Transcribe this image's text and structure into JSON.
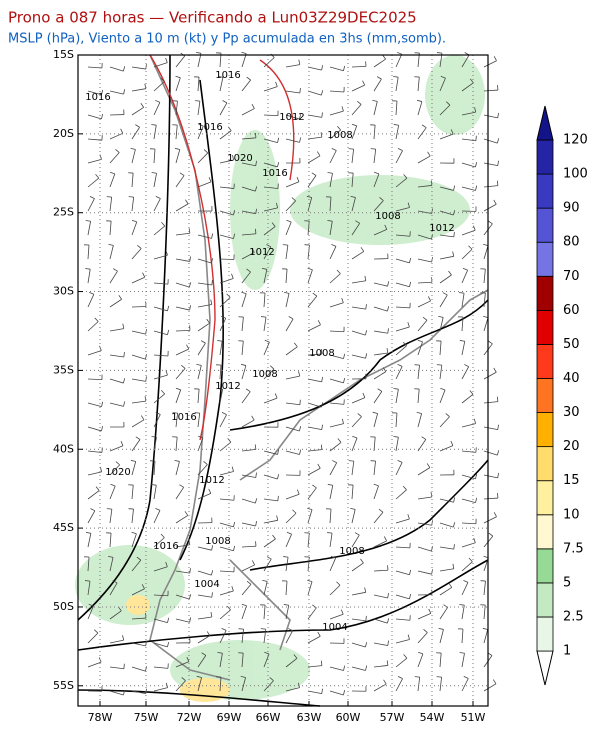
{
  "header": {
    "title": "Prono a 087 horas — Verificando a Lun03Z29DEC2025",
    "subtitle": "MSLP (hPa), Viento a 10 m (kt) y Pp acumulada en 3hs (mm,somb)."
  },
  "map": {
    "lat_labels": [
      "15S",
      "20S",
      "25S",
      "30S",
      "35S",
      "40S",
      "45S",
      "50S",
      "55S"
    ],
    "lon_labels": [
      "78W",
      "75W",
      "72W",
      "69W",
      "66W",
      "63W",
      "60W",
      "57W",
      "54W",
      "51W"
    ],
    "isobar_labels": [
      "1016",
      "1016",
      "1016",
      "1012",
      "1008",
      "1020",
      "1016",
      "1008",
      "1012",
      "1012",
      "1008",
      "1008",
      "1012",
      "1016",
      "1020",
      "1012",
      "1008",
      "1016",
      "1008",
      "1004",
      "1004"
    ]
  },
  "colorbar": {
    "levels": [
      1,
      2.5,
      5,
      7.5,
      10,
      15,
      20,
      30,
      40,
      50,
      60,
      70,
      80,
      90,
      100,
      120
    ],
    "colors": [
      "#ffffff",
      "#e8f6e8",
      "#c4eac4",
      "#96da96",
      "#fff8d0",
      "#fff0a0",
      "#ffdc6c",
      "#ffb000",
      "#ff7420",
      "#ff3a1c",
      "#e00000",
      "#a00000",
      "#7474e4",
      "#5454d4",
      "#3a3ac0",
      "#2424a4",
      "#14148a"
    ]
  }
}
